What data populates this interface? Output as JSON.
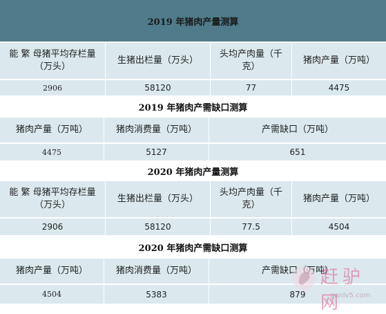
{
  "tables": [
    {
      "title": "2019 年猪肉产量测算",
      "headers": [
        "能 繁 母猪平均存栏量（万头）",
        "生猪出栏量（万头）",
        "头均产肉量（千克）",
        "猪肉产量（万吨）"
      ],
      "values": [
        "2906",
        "58120",
        "77",
        "4475"
      ]
    },
    {
      "title": "2019 年猪肉产需缺口测算",
      "headers": [
        "猪肉产量（万吨）",
        "猪肉消费量（万吨）",
        "产需缺口（万吨）"
      ],
      "values": [
        "4475",
        "5127",
        "651"
      ]
    },
    {
      "title": "2020 年猪肉产量测算",
      "headers": [
        "能 繁 母猪平均存栏量（万头）",
        "生猪出栏量（万头）",
        "头均产肉量（千克）",
        "猪肉产量（万吨）"
      ],
      "values": [
        "2906",
        "58120",
        "77.5",
        "4504"
      ]
    },
    {
      "title": "2020 年猪肉产需缺口测算",
      "headers": [
        "猪肉产量（万吨）",
        "猪肉消费量（万吨）",
        "产需缺口（万吨）"
      ],
      "values": [
        "4504",
        "5383",
        "879"
      ]
    }
  ],
  "watermark": {
    "text": "赶驴网",
    "url": "ganlv5.com"
  },
  "colors": {
    "title_dark": "#4f7b8a",
    "cell_fill": "#dbe9ee",
    "watermark": "#e25a8a"
  }
}
